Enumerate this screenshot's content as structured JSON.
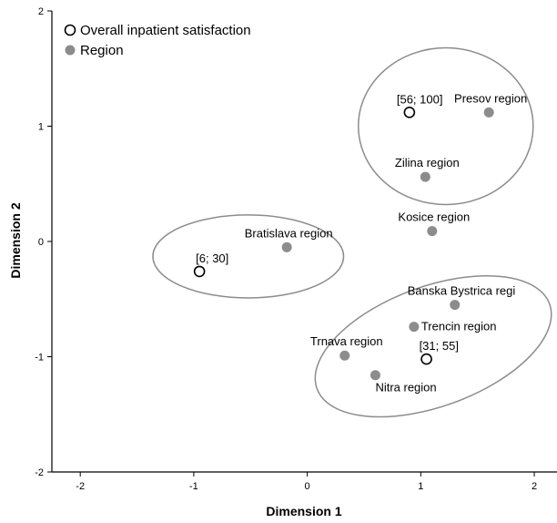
{
  "chart_data": {
    "type": "scatter",
    "xlabel": "Dimension 1",
    "ylabel": "Dimension 2",
    "xlim": [
      -2.25,
      2.2
    ],
    "ylim": [
      -2,
      2
    ],
    "xticks": [
      -2,
      -1,
      0,
      1,
      2
    ],
    "yticks": [
      -2,
      -1,
      0,
      1,
      2
    ],
    "grid": false,
    "legend": {
      "placement": "top-left",
      "entries": [
        {
          "label": "Overall inpatient satisfaction",
          "marker": "open"
        },
        {
          "label": "Region",
          "marker": "filled"
        }
      ]
    },
    "colors": {
      "region_fill": "#8c8c8c",
      "ellipse_stroke": "#8c8c8c",
      "open_marker_stroke": "#000000"
    },
    "series": [
      {
        "name": "Overall inpatient satisfaction",
        "marker": "open",
        "points": [
          {
            "label": "[56; 100]",
            "x": 0.9,
            "y": 1.12
          },
          {
            "label": "[6; 30]",
            "x": -0.95,
            "y": -0.26
          },
          {
            "label": "[31; 55]",
            "x": 1.05,
            "y": -1.02
          }
        ]
      },
      {
        "name": "Region",
        "marker": "filled",
        "points": [
          {
            "label": "Presov region",
            "x": 1.6,
            "y": 1.12
          },
          {
            "label": "Zilina region",
            "x": 1.04,
            "y": 0.56
          },
          {
            "label": "Kosice region",
            "x": 1.1,
            "y": 0.09
          },
          {
            "label": "Bratislava region",
            "x": -0.18,
            "y": -0.05
          },
          {
            "label": "Banska Bystrica regi",
            "x": 1.3,
            "y": -0.55
          },
          {
            "label": "Trencin region",
            "x": 0.94,
            "y": -0.74
          },
          {
            "label": "Trnava region",
            "x": 0.33,
            "y": -0.99
          },
          {
            "label": "Nitra region",
            "x": 0.6,
            "y": -1.16
          }
        ]
      }
    ],
    "ellipses": [
      {
        "cx": 1.22,
        "cy": 1.0,
        "rx": 0.77,
        "ry": 0.68,
        "rotation": 0
      },
      {
        "cx": -0.52,
        "cy": -0.13,
        "rx": 0.84,
        "ry": 0.36,
        "rotation": 0
      },
      {
        "cx": 1.11,
        "cy": -0.91,
        "rx": 1.09,
        "ry": 0.52,
        "rotation": -20
      }
    ]
  }
}
